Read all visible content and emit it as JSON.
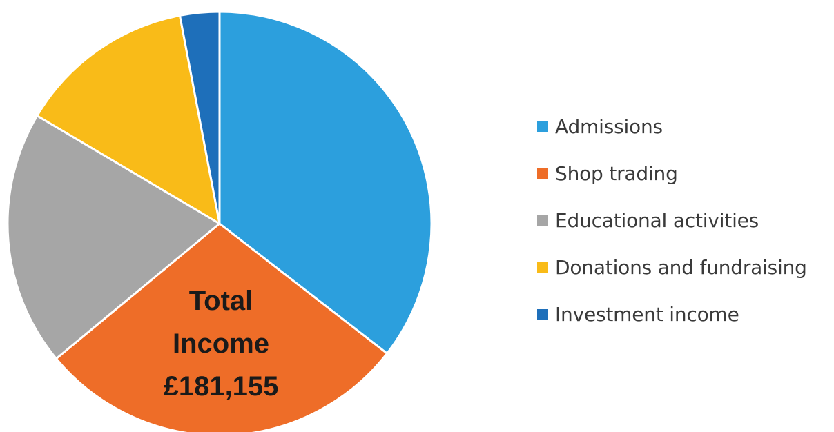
{
  "chart_data": {
    "type": "pie",
    "title": "",
    "center_label": [
      "Total",
      "Income",
      "£181,155"
    ],
    "categories": [
      "Admissions",
      "Shop trading",
      "Educational activities",
      "Donations and fundraising",
      "Investment income"
    ],
    "values": [
      35.5,
      28.5,
      19.5,
      13.5,
      3.0
    ],
    "colors": [
      "#2c9fdd",
      "#ee6d28",
      "#a6a6a6",
      "#f9bb18",
      "#1e6fba"
    ],
    "start_angle_deg": 0,
    "direction": "clockwise",
    "legend_position": "right"
  }
}
